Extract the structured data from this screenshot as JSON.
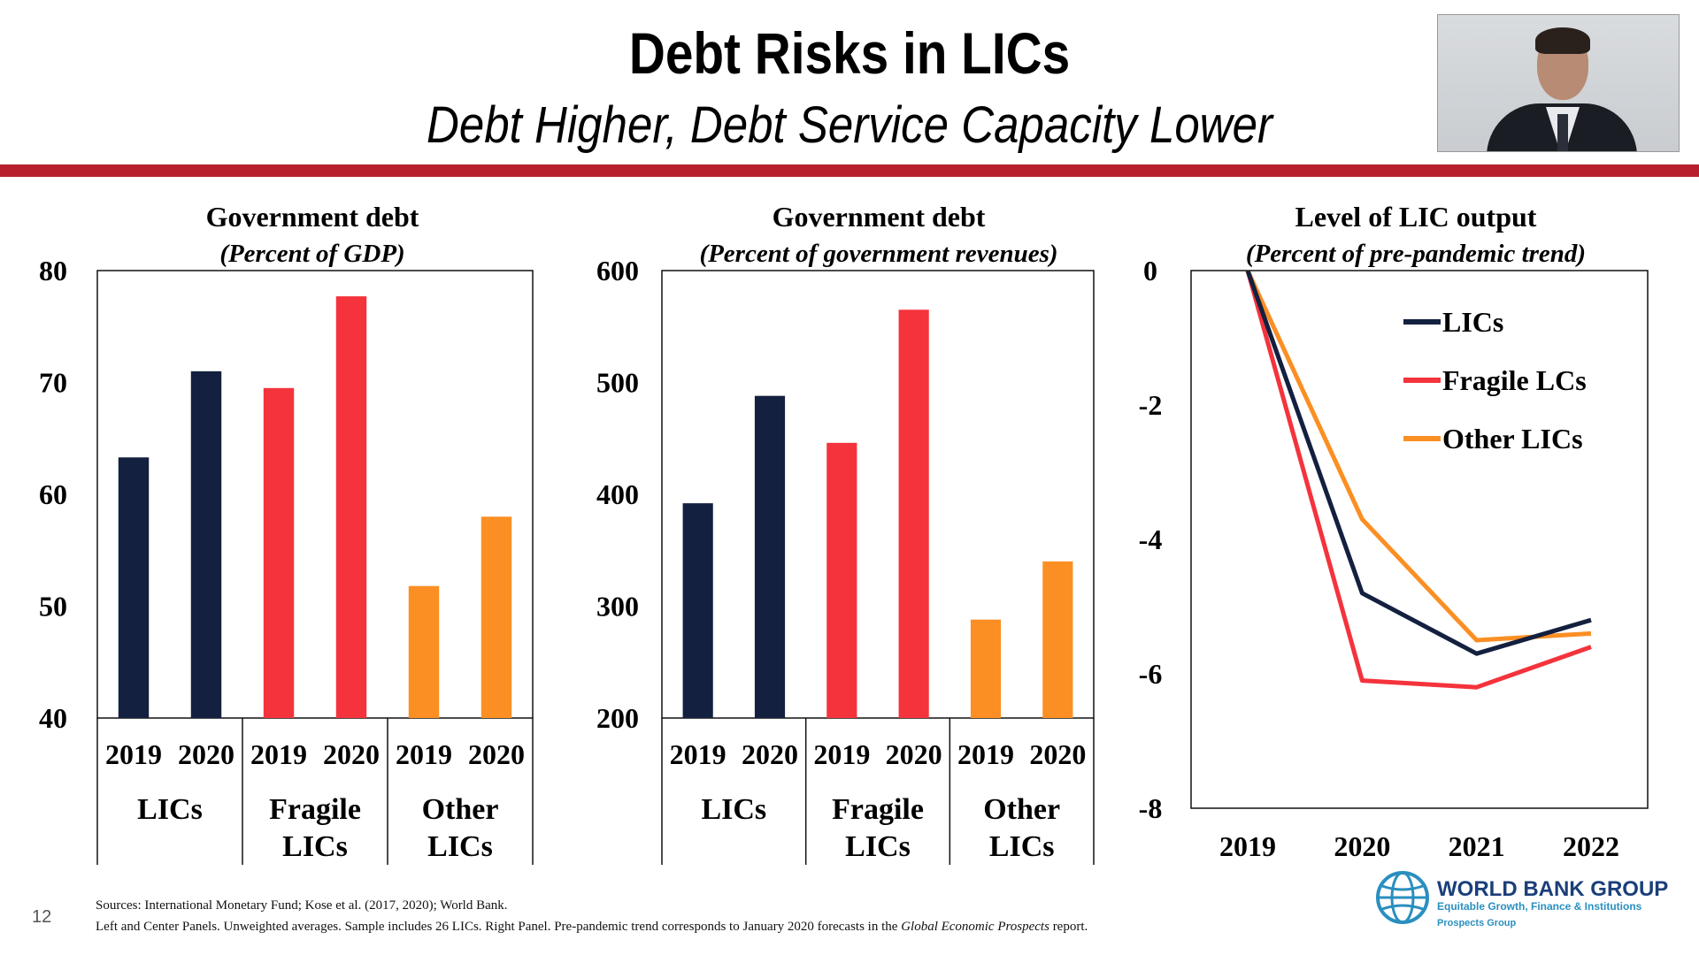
{
  "slide": {
    "title": "Debt Risks in LICs",
    "subtitle": "Debt Higher, Debt Service Capacity Lower",
    "page_number": "12",
    "sources": "Sources: International Monetary Fund; Kose et al. (2017, 2020); World Bank.",
    "note_prefix": "Left and Center Panels. Unweighted averages. Sample includes 26 LICs. Right Panel. Pre-pandemic trend corresponds to January 2020 forecasts in the ",
    "note_italic": "Global Economic Prospects",
    "note_suffix": " report.",
    "logo_name": "WORLD BANK GROUP",
    "logo_tagline": "Equitable Growth, Finance & Institutions",
    "logo_group": "Prospects Group"
  },
  "colors": {
    "navy": "#13203f",
    "red": "#f4333c",
    "orange": "#fb8f24",
    "accent_bar": "#b8202e"
  },
  "chart_data": [
    {
      "type": "bar",
      "title": "Government debt",
      "subtitle": "(Percent of GDP)",
      "groups": [
        "LICs",
        "Fragile LICs",
        "Other LICs"
      ],
      "categories": [
        "2019",
        "2020"
      ],
      "series": [
        {
          "group": "LICs",
          "color": "#13203f",
          "values": [
            63.3,
            71.0
          ]
        },
        {
          "group": "Fragile LICs",
          "color": "#f4333c",
          "values": [
            69.5,
            77.7
          ]
        },
        {
          "group": "Other LICs",
          "color": "#fb8f24",
          "values": [
            51.8,
            58.0
          ]
        }
      ],
      "ylim": [
        40,
        80
      ],
      "yticks": [
        40,
        50,
        60,
        70,
        80
      ]
    },
    {
      "type": "bar",
      "title": "Government debt",
      "subtitle": "(Percent of government revenues)",
      "groups": [
        "LICs",
        "Fragile LICs",
        "Other LICs"
      ],
      "categories": [
        "2019",
        "2020"
      ],
      "series": [
        {
          "group": "LICs",
          "color": "#13203f",
          "values": [
            392,
            488
          ]
        },
        {
          "group": "Fragile LICs",
          "color": "#f4333c",
          "values": [
            446,
            565
          ]
        },
        {
          "group": "Other LICs",
          "color": "#fb8f24",
          "values": [
            288,
            340
          ]
        }
      ],
      "ylim": [
        200,
        600
      ],
      "yticks": [
        200,
        300,
        400,
        500,
        600
      ]
    },
    {
      "type": "line",
      "title": "Level of LIC output",
      "subtitle": "(Percent of pre-pandemic trend)",
      "x": [
        "2019",
        "2020",
        "2021",
        "2022"
      ],
      "series": [
        {
          "name": "LICs",
          "color": "#13203f",
          "values": [
            0,
            -4.8,
            -5.7,
            -5.2
          ]
        },
        {
          "name": "Fragile LCs",
          "color": "#f4333c",
          "values": [
            0,
            -6.1,
            -6.2,
            -5.6
          ]
        },
        {
          "name": "Other LICs",
          "color": "#fb8f24",
          "values": [
            0,
            -3.7,
            -5.5,
            -5.4
          ]
        }
      ],
      "ylim": [
        -8,
        0
      ],
      "yticks": [
        0,
        -2,
        -4,
        -6,
        -8
      ]
    }
  ]
}
